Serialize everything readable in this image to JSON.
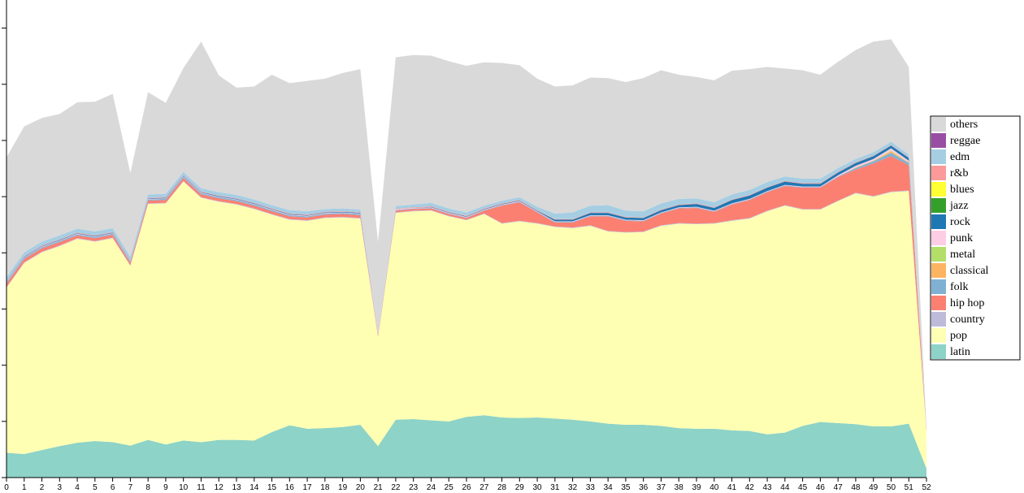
{
  "chart_data": {
    "type": "area",
    "stacked": true,
    "x": [
      0,
      1,
      2,
      3,
      4,
      5,
      6,
      7,
      8,
      9,
      10,
      11,
      12,
      13,
      14,
      15,
      16,
      17,
      18,
      19,
      20,
      21,
      22,
      23,
      24,
      25,
      26,
      27,
      28,
      29,
      30,
      31,
      32,
      33,
      34,
      35,
      36,
      37,
      38,
      39,
      40,
      41,
      42,
      43,
      44,
      45,
      46,
      47,
      48,
      49,
      50,
      51,
      52
    ],
    "xlim": [
      0,
      52
    ],
    "ylim": [
      0,
      85
    ],
    "y_ticks": [
      0,
      10,
      20,
      30,
      40,
      50,
      60,
      70,
      80
    ],
    "y_tick_labels_visible": false,
    "grid": false,
    "legend_position": "right",
    "legend_order": [
      "others",
      "reggae",
      "edm",
      "r&b",
      "blues",
      "jazz",
      "rock",
      "punk",
      "metal",
      "classical",
      "folk",
      "hip hop",
      "country",
      "pop",
      "latin"
    ],
    "series": [
      {
        "name": "latin",
        "color": "#8dd3c7",
        "values": [
          4.4,
          4.2,
          4.9,
          5.6,
          6.2,
          6.5,
          6.3,
          5.7,
          6.7,
          5.9,
          6.6,
          6.3,
          6.7,
          6.7,
          6.6,
          8.1,
          9.3,
          8.7,
          8.8,
          9.0,
          9.4,
          5.6,
          10.3,
          10.4,
          10.2,
          10.0,
          10.8,
          11.1,
          10.7,
          10.6,
          10.7,
          10.5,
          10.3,
          10.0,
          9.6,
          9.4,
          9.4,
          9.2,
          8.8,
          8.7,
          8.7,
          8.4,
          8.3,
          7.7,
          8.0,
          9.2,
          9.9,
          9.7,
          9.5,
          9.1,
          9.1,
          9.6,
          1.6
        ]
      },
      {
        "name": "pop",
        "color": "#ffffb3",
        "values": [
          29.4,
          34.0,
          35.2,
          35.6,
          36.3,
          35.5,
          36.3,
          32.0,
          42.0,
          42.9,
          46.1,
          43.5,
          42.4,
          41.9,
          41.2,
          38.7,
          36.6,
          37.0,
          37.4,
          37.3,
          36.7,
          19.4,
          36.8,
          37.0,
          37.3,
          36.5,
          35.0,
          35.8,
          34.5,
          35.0,
          34.5,
          34.1,
          34.1,
          34.8,
          34.2,
          34.2,
          34.3,
          35.6,
          36.4,
          36.4,
          36.5,
          37.3,
          37.8,
          39.7,
          40.4,
          38.5,
          37.8,
          39.5,
          41.1,
          40.9,
          41.7,
          41.4,
          6.7
        ]
      },
      {
        "name": "country",
        "color": "#bebada",
        "values": [
          0.1,
          0.1,
          0.1,
          0.1,
          0.1,
          0.1,
          0.1,
          0.1,
          0.1,
          0.1,
          0.1,
          0.1,
          0.1,
          0.1,
          0.1,
          0.1,
          0.1,
          0.1,
          0.1,
          0.1,
          0.1,
          0.1,
          0.1,
          0.1,
          0.1,
          0.1,
          0.1,
          0.1,
          0.1,
          0.1,
          0.1,
          0.1,
          0.1,
          0.1,
          0.1,
          0.1,
          0.1,
          0.1,
          0.1,
          0.1,
          0.1,
          0.1,
          0.1,
          0.1,
          0.1,
          0.1,
          0.1,
          0.1,
          0.1,
          0.1,
          0.1,
          0.1,
          0.0
        ]
      },
      {
        "name": "hip hop",
        "color": "#fb8072",
        "values": [
          0.6,
          0.6,
          0.6,
          0.6,
          0.5,
          0.5,
          0.5,
          0.4,
          0.5,
          0.5,
          0.5,
          0.5,
          0.5,
          0.5,
          0.5,
          0.5,
          0.5,
          0.5,
          0.5,
          0.5,
          0.5,
          0.3,
          0.3,
          0.3,
          0.3,
          0.3,
          0.3,
          0.5,
          3.1,
          3.3,
          1.9,
          0.7,
          0.9,
          1.6,
          2.6,
          2.0,
          1.8,
          2.1,
          2.6,
          2.8,
          2.0,
          2.8,
          3.2,
          3.3,
          3.4,
          3.8,
          3.8,
          4.2,
          4.1,
          5.8,
          6.3,
          4.5,
          0.3
        ]
      },
      {
        "name": "folk",
        "color": "#80b1d3",
        "values": [
          0.2,
          0.2,
          0.2,
          0.2,
          0.2,
          0.2,
          0.2,
          0.2,
          0.2,
          0.2,
          0.2,
          0.2,
          0.2,
          0.2,
          0.2,
          0.2,
          0.2,
          0.2,
          0.2,
          0.2,
          0.2,
          0.1,
          0.1,
          0.1,
          0.1,
          0.1,
          0.1,
          0.1,
          0.1,
          0.1,
          0.1,
          0.1,
          0.1,
          0.1,
          0.1,
          0.1,
          0.1,
          0.1,
          0.1,
          0.1,
          0.1,
          0.1,
          0.1,
          0.1,
          0.1,
          0.1,
          0.1,
          0.1,
          0.3,
          0.4,
          0.6,
          0.4,
          0.1
        ]
      },
      {
        "name": "classical",
        "color": "#fdb462",
        "values": [
          0,
          0,
          0,
          0,
          0,
          0,
          0,
          0,
          0,
          0,
          0,
          0,
          0,
          0,
          0,
          0,
          0,
          0,
          0,
          0,
          0,
          0,
          0,
          0,
          0,
          0,
          0,
          0,
          0,
          0,
          0,
          0,
          0,
          0,
          0,
          0,
          0,
          0,
          0,
          0,
          0,
          0,
          0,
          0,
          0,
          0,
          0,
          0,
          0.1,
          0.1,
          0.3,
          0.1,
          0
        ]
      },
      {
        "name": "metal",
        "color": "#b3de69",
        "values": [
          0,
          0,
          0,
          0,
          0,
          0,
          0,
          0,
          0,
          0,
          0,
          0,
          0,
          0,
          0,
          0,
          0,
          0,
          0,
          0,
          0,
          0,
          0,
          0,
          0,
          0,
          0,
          0,
          0,
          0,
          0,
          0,
          0,
          0,
          0,
          0,
          0,
          0,
          0,
          0,
          0,
          0,
          0,
          0,
          0,
          0,
          0,
          0,
          0,
          0,
          0.1,
          0,
          0
        ]
      },
      {
        "name": "punk",
        "color": "#fccde5",
        "values": [
          0.1,
          0.1,
          0.1,
          0.1,
          0.1,
          0.1,
          0.1,
          0.1,
          0.1,
          0.1,
          0.1,
          0.1,
          0.1,
          0.1,
          0.1,
          0.1,
          0.1,
          0.1,
          0.1,
          0.1,
          0.1,
          0.1,
          0.1,
          0.1,
          0.1,
          0.1,
          0.1,
          0.1,
          0.1,
          0.1,
          0.1,
          0.1,
          0.1,
          0.1,
          0.1,
          0.1,
          0.1,
          0.1,
          0.1,
          0.1,
          0.1,
          0.1,
          0.1,
          0.1,
          0.1,
          0.1,
          0.1,
          0.2,
          0.3,
          0.3,
          0.4,
          0.3,
          0
        ]
      },
      {
        "name": "rock",
        "color": "#1f78b4",
        "values": [
          0.1,
          0.1,
          0.1,
          0.1,
          0.1,
          0.1,
          0.1,
          0.1,
          0.1,
          0.1,
          0.1,
          0.1,
          0.1,
          0.1,
          0.1,
          0.1,
          0.1,
          0.1,
          0.1,
          0.1,
          0.1,
          0.0,
          0.0,
          0.0,
          0.1,
          0.1,
          0.1,
          0.1,
          0.1,
          0.1,
          0.1,
          0.3,
          0.3,
          0.4,
          0.4,
          0.4,
          0.4,
          0.4,
          0.4,
          0.5,
          0.5,
          0.6,
          0.6,
          0.6,
          0.6,
          0.5,
          0.5,
          0.5,
          0.5,
          0.5,
          0.5,
          0.5,
          0.0
        ]
      },
      {
        "name": "jazz",
        "color": "#33a02c",
        "values": [
          0,
          0,
          0,
          0,
          0,
          0,
          0,
          0,
          0,
          0,
          0,
          0,
          0,
          0,
          0,
          0,
          0,
          0,
          0,
          0,
          0,
          0,
          0,
          0,
          0,
          0,
          0,
          0,
          0,
          0,
          0,
          0,
          0,
          0,
          0,
          0,
          0,
          0,
          0,
          0,
          0,
          0,
          0,
          0,
          0,
          0,
          0,
          0,
          0,
          0,
          0,
          0,
          0
        ]
      },
      {
        "name": "blues",
        "color": "#ffff33",
        "values": [
          0,
          0,
          0,
          0,
          0,
          0,
          0,
          0,
          0,
          0,
          0,
          0,
          0,
          0,
          0,
          0,
          0,
          0,
          0,
          0,
          0,
          0,
          0,
          0,
          0,
          0,
          0,
          0,
          0,
          0,
          0,
          0,
          0,
          0,
          0,
          0,
          0,
          0,
          0,
          0,
          0,
          0,
          0,
          0,
          0,
          0,
          0,
          0,
          0,
          0,
          0,
          0,
          0
        ]
      },
      {
        "name": "r&b",
        "color": "#fb9a99",
        "values": [
          0.1,
          0.1,
          0.1,
          0.1,
          0.1,
          0.1,
          0.1,
          0.1,
          0.1,
          0.1,
          0.1,
          0.1,
          0.1,
          0.1,
          0.1,
          0.1,
          0.1,
          0.1,
          0.1,
          0.1,
          0.1,
          0.0,
          0.1,
          0.1,
          0.1,
          0.1,
          0.1,
          0.1,
          0.1,
          0.1,
          0.1,
          0.1,
          0.1,
          0.1,
          0.1,
          0.1,
          0.1,
          0.1,
          0.1,
          0.1,
          0.1,
          0.1,
          0.1,
          0.1,
          0.1,
          0.1,
          0.1,
          0.1,
          0.1,
          0.1,
          0.1,
          0.1,
          0.0
        ]
      },
      {
        "name": "edm",
        "color": "#a6cee3",
        "values": [
          0.7,
          0.7,
          0.7,
          0.7,
          0.7,
          0.7,
          0.7,
          0.6,
          0.6,
          0.6,
          0.6,
          0.6,
          0.6,
          0.6,
          0.6,
          0.6,
          0.6,
          0.6,
          0.5,
          0.5,
          0.5,
          0.2,
          0.5,
          0.5,
          0.6,
          0.6,
          0.6,
          0.5,
          0.5,
          0.5,
          0.6,
          1.0,
          1.2,
          1.2,
          1.3,
          1.1,
          1.1,
          1.1,
          1.0,
          0.9,
          0.9,
          0.9,
          0.9,
          0.9,
          0.8,
          0.8,
          0.8,
          0.7,
          0.6,
          0.6,
          0.6,
          0.5,
          0.1
        ]
      },
      {
        "name": "reggae",
        "color": "#984ea3",
        "values": [
          0,
          0,
          0,
          0,
          0,
          0,
          0,
          0,
          0,
          0,
          0,
          0,
          0,
          0,
          0,
          0,
          0,
          0,
          0,
          0,
          0,
          0,
          0,
          0,
          0,
          0,
          0,
          0,
          0,
          0,
          0,
          0,
          0,
          0,
          0,
          0,
          0,
          0,
          0,
          0,
          0,
          0,
          0,
          0,
          0,
          0,
          0,
          0,
          0,
          0,
          0,
          0,
          0
        ]
      },
      {
        "name": "others",
        "color": "#d9d9d9",
        "values": [
          21.3,
          22.4,
          22.0,
          21.6,
          22.5,
          23.1,
          23.9,
          14.9,
          18.2,
          16.2,
          18.5,
          26.1,
          20.8,
          19.1,
          20.1,
          23.2,
          22.6,
          23.2,
          23.2,
          24.1,
          25.0,
          16.1,
          26.5,
          26.6,
          26.2,
          26.2,
          26.1,
          25.5,
          24.5,
          23.5,
          22.8,
          22.6,
          22.6,
          22.8,
          22.6,
          22.9,
          23.7,
          23.7,
          22.1,
          21.6,
          21.7,
          22.0,
          21.5,
          20.5,
          19.2,
          19.3,
          18.5,
          18.9,
          19.4,
          19.7,
          18.2,
          15.6,
          0.0
        ]
      }
    ]
  }
}
